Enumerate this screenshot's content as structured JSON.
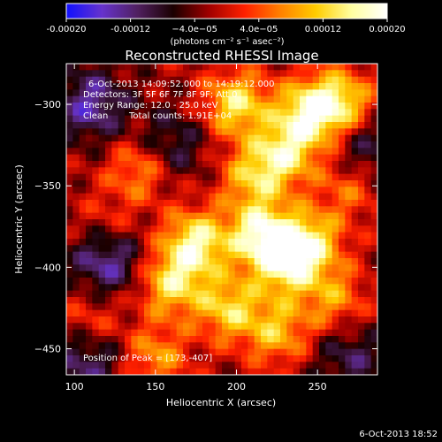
{
  "chart_data": {
    "type": "heatmap",
    "title": "Reconstructed RHESSI Image",
    "xlabel": "Heliocentric X (arcsec)",
    "ylabel": "Heliocentric Y (arcsec)",
    "xlim": [
      95,
      287
    ],
    "ylim": [
      -466,
      -275
    ],
    "x_ticks": [
      100,
      150,
      200,
      250
    ],
    "y_ticks": [
      -300,
      -350,
      -400,
      -450
    ],
    "colorbar": {
      "range": [
        -0.0002,
        0.0002
      ],
      "ticks": [
        -0.0002,
        -0.00012,
        -4e-05,
        4e-05,
        0.00012,
        0.0002
      ],
      "tick_labels": [
        "-0.00020",
        "-0.00012",
        "−4.0e−05",
        "4.0e−05",
        "0.00012",
        "0.00020"
      ],
      "unit_label": "(photons cm⁻² s⁻¹ asec⁻²)",
      "colormap": [
        "#1010ff",
        "#6633cc",
        "#502060",
        "#1a0000",
        "#a00000",
        "#ff2000",
        "#ff8000",
        "#ffcc00",
        "#ffffa0",
        "#ffffff"
      ]
    },
    "annotations": {
      "time_range": "6-Oct-2013 14:09:52.000 to 14:19:12.000",
      "detectors": "Detectors: 3F 5F 6F 7F 8F 9F; Att 0",
      "energy": "Energy Range: 12.0 - 25.0 keV",
      "method": "Clean",
      "counts": "Total counts: 1.91E+04",
      "peak": "Position of Peak = [173,-407]"
    },
    "peak": {
      "x": 173,
      "y": -407
    },
    "bright_regions": [
      {
        "x": 200,
        "y": -300,
        "level": 0.00016
      },
      {
        "x": 245,
        "y": -305,
        "level": 0.00018
      },
      {
        "x": 265,
        "y": -298,
        "level": 0.00014
      },
      {
        "x": 230,
        "y": -330,
        "level": 0.00015
      },
      {
        "x": 210,
        "y": -345,
        "level": 0.00012
      },
      {
        "x": 175,
        "y": -385,
        "level": 0.00018
      },
      {
        "x": 215,
        "y": -380,
        "level": 0.00019
      },
      {
        "x": 245,
        "y": -385,
        "level": 0.00016
      },
      {
        "x": 230,
        "y": -400,
        "level": 0.00014
      },
      {
        "x": 160,
        "y": -410,
        "level": 0.00015
      },
      {
        "x": 195,
        "y": -425,
        "level": 0.00014
      },
      {
        "x": 225,
        "y": -440,
        "level": 0.00012
      },
      {
        "x": 260,
        "y": -420,
        "level": 0.0001
      },
      {
        "x": 110,
        "y": -435,
        "level": 8e-05
      },
      {
        "x": 140,
        "y": -340,
        "level": 0.0001
      },
      {
        "x": 270,
        "y": -350,
        "level": 9e-05
      },
      {
        "x": 120,
        "y": -375,
        "level": 6e-05
      },
      {
        "x": 150,
        "y": -455,
        "level": 0.0001
      }
    ],
    "dark_regions": [
      {
        "x": 110,
        "y": -300,
        "level": -0.00012
      },
      {
        "x": 120,
        "y": -395,
        "level": -0.00013
      },
      {
        "x": 108,
        "y": -455,
        "level": -0.00011
      },
      {
        "x": 270,
        "y": -455,
        "level": -8e-05
      },
      {
        "x": 280,
        "y": -330,
        "level": -9e-05
      },
      {
        "x": 160,
        "y": -325,
        "level": -8e-05
      }
    ]
  },
  "footer": {
    "timestamp": "6-Oct-2013 18:52"
  }
}
